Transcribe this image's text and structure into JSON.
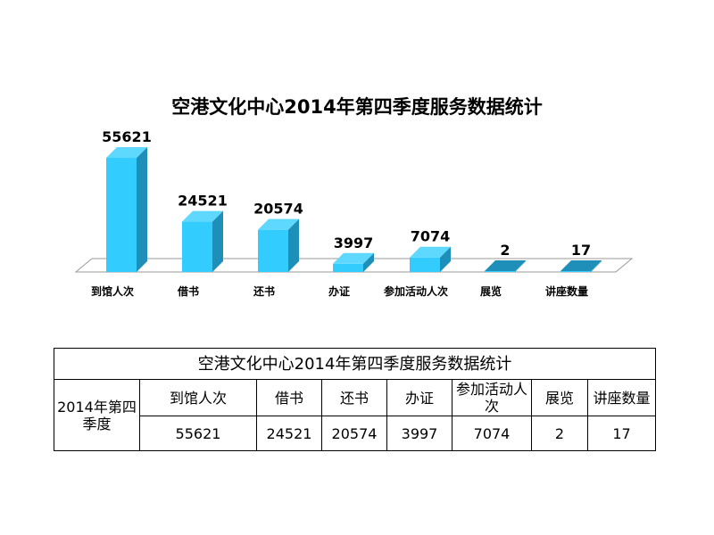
{
  "chart_data": {
    "type": "bar",
    "title": "空港文化中心2014年第四季度服务数据统计",
    "categories": [
      "到馆人次",
      "借书",
      "还书",
      "办证",
      "参加活动人次",
      "展览",
      "讲座数量"
    ],
    "values": [
      55621,
      24521,
      20574,
      3997,
      7074,
      2,
      17
    ],
    "colors": {
      "front": "#33ccff",
      "side": "#1e8fb8",
      "top": "#5fd8ff",
      "floor_stroke": "#999999"
    }
  },
  "table": {
    "title": "空港文化中心2014年第四季度服务数据统计",
    "row_header": "2014年第四季度",
    "headers": [
      "到馆人次",
      "借书",
      "还书",
      "办证",
      "参加活动人次",
      "展览",
      "讲座数量"
    ],
    "values": [
      "55621",
      "24521",
      "20574",
      "3997",
      "7074",
      "2",
      "17"
    ]
  }
}
